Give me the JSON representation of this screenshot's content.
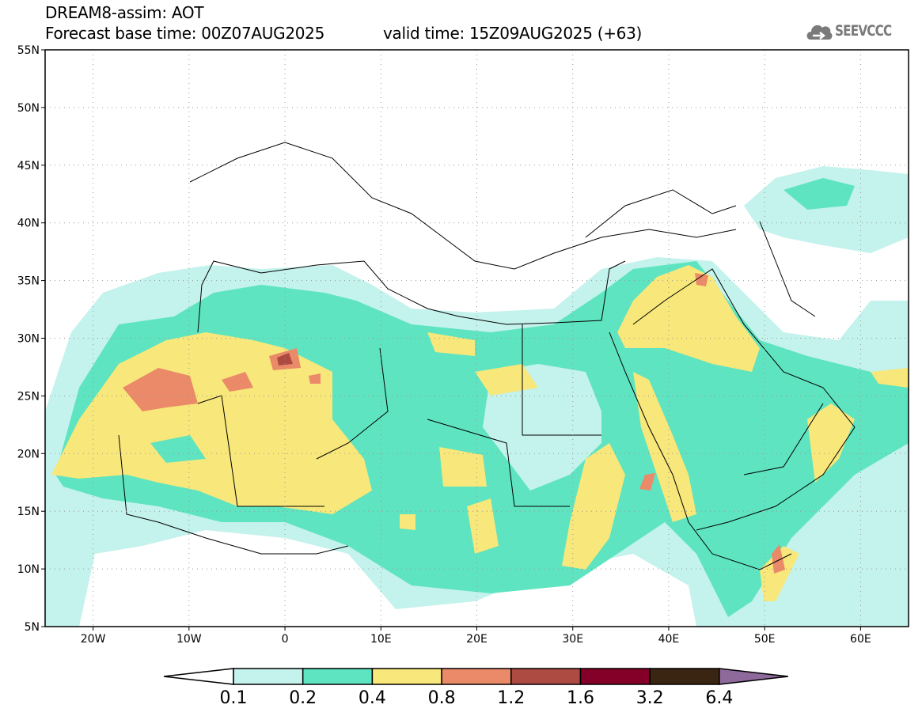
{
  "header": {
    "title": "DREAM8-assim: AOT",
    "base_time": "Forecast base time: 00Z07AUG2025",
    "valid_time": "valid time: 15Z09AUG2025 (+63)"
  },
  "logo": {
    "text": "SEEVCCC",
    "icon": "cloud-icon"
  },
  "map": {
    "lon_range": [
      -25,
      65
    ],
    "lat_range": [
      5,
      55
    ],
    "lat_ticks": [
      {
        "v": 55,
        "label": "55N"
      },
      {
        "v": 50,
        "label": "50N"
      },
      {
        "v": 45,
        "label": "45N"
      },
      {
        "v": 40,
        "label": "40N"
      },
      {
        "v": 35,
        "label": "35N"
      },
      {
        "v": 30,
        "label": "30N"
      },
      {
        "v": 25,
        "label": "25N"
      },
      {
        "v": 20,
        "label": "20N"
      },
      {
        "v": 15,
        "label": "15N"
      },
      {
        "v": 10,
        "label": "10N"
      },
      {
        "v": 5,
        "label": "5N"
      }
    ],
    "lon_ticks": [
      {
        "v": -20,
        "label": "20W"
      },
      {
        "v": -10,
        "label": "10W"
      },
      {
        "v": 0,
        "label": "0"
      },
      {
        "v": 10,
        "label": "10E"
      },
      {
        "v": 20,
        "label": "20E"
      },
      {
        "v": 30,
        "label": "30E"
      },
      {
        "v": 40,
        "label": "40E"
      },
      {
        "v": 50,
        "label": "50E"
      },
      {
        "v": 60,
        "label": "60E"
      }
    ]
  },
  "colorbar": {
    "levels": [
      "0.1",
      "0.2",
      "0.4",
      "0.8",
      "1.2",
      "1.6",
      "3.2",
      "6.4"
    ],
    "colors": [
      "#c4f2ec",
      "#5ee4c0",
      "#f8e77a",
      "#ea8a68",
      "#ad4b42",
      "#840029",
      "#3a2412",
      "#8e6a9c"
    ],
    "under_color": "#ffffff"
  }
}
